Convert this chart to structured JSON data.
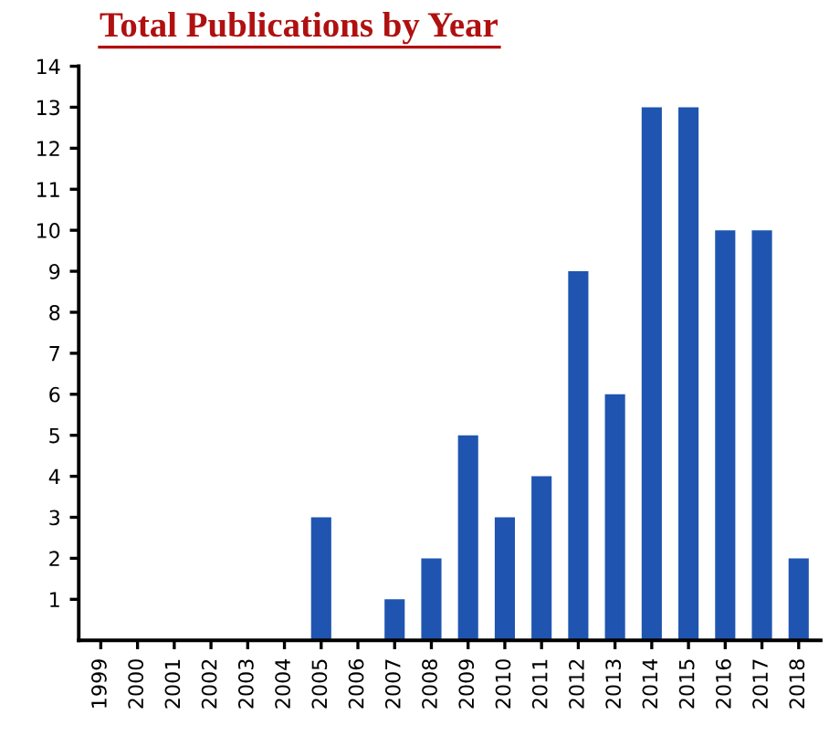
{
  "chart_data": {
    "type": "bar",
    "title": "Total Publications by Year",
    "categories": [
      "1999",
      "2000",
      "2001",
      "2002",
      "2003",
      "2004",
      "2005",
      "2006",
      "2007",
      "2008",
      "2009",
      "2010",
      "2011",
      "2012",
      "2013",
      "2014",
      "2015",
      "2016",
      "2017",
      "2018"
    ],
    "values": [
      0,
      0,
      0,
      0,
      0,
      0,
      3,
      0,
      1,
      2,
      5,
      3,
      4,
      9,
      6,
      13,
      13,
      10,
      10,
      2
    ],
    "color": "#1f55b0",
    "ylim": [
      0,
      14
    ],
    "yticks": [
      1,
      2,
      3,
      4,
      5,
      6,
      7,
      8,
      9,
      10,
      11,
      12,
      13,
      14
    ],
    "grid": false,
    "legend": false
  }
}
